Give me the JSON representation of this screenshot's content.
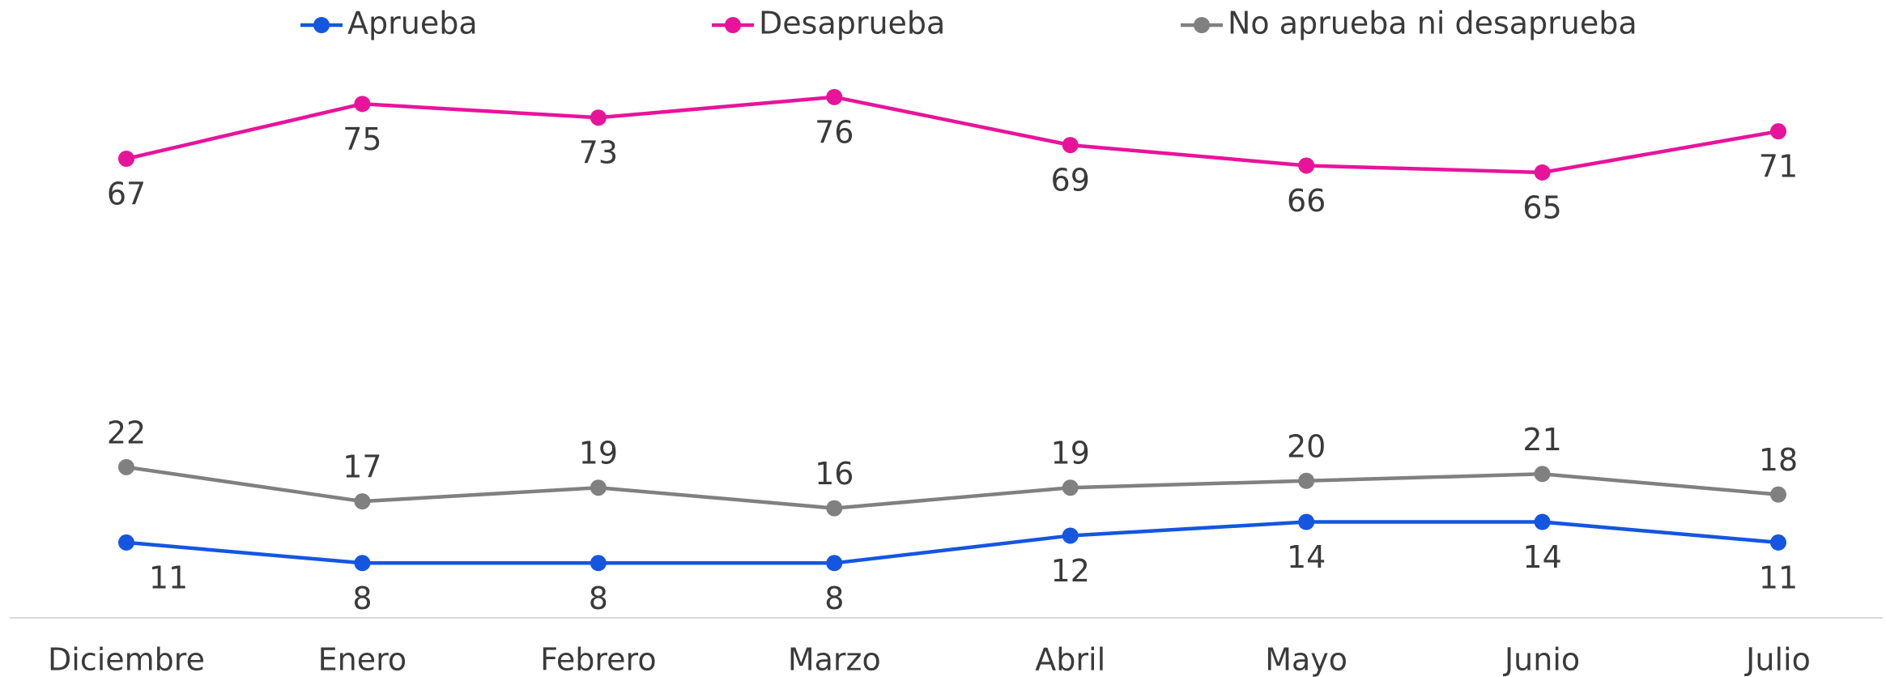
{
  "chart_data": {
    "type": "line",
    "categories": [
      "Diciembre",
      "Enero",
      "Febrero",
      "Marzo",
      "Abril",
      "Mayo",
      "Junio",
      "Julio"
    ],
    "series": [
      {
        "name": "Aprueba",
        "color": "#1456e0",
        "values": [
          11,
          8,
          8,
          8,
          12,
          14,
          14,
          11
        ]
      },
      {
        "name": "Desaprueba",
        "color": "#e8139b",
        "values": [
          67,
          75,
          73,
          76,
          69,
          66,
          65,
          71
        ]
      },
      {
        "name": "No aprueba ni desaprueba",
        "color": "#808080",
        "values": [
          22,
          17,
          19,
          16,
          19,
          20,
          21,
          18
        ]
      }
    ],
    "ylim": [
      0,
      80
    ]
  }
}
